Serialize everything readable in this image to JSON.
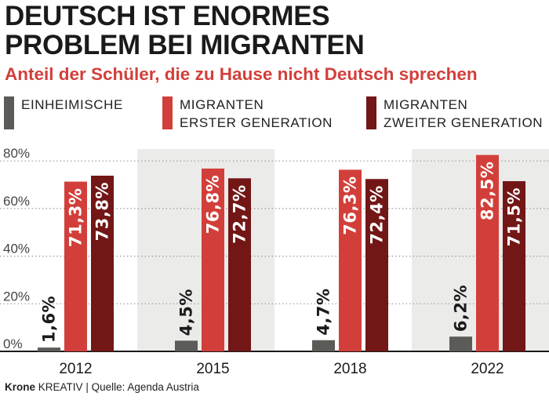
{
  "header": {
    "title": "DEUTSCH IST ENORMES\nPROBLEM BEI MIGRANTEN",
    "subtitle": "Anteil der Schüler, die zu Hause nicht Deutsch sprechen"
  },
  "legend": [
    {
      "label": "EINHEIMISCHE",
      "color": "#5b5b58"
    },
    {
      "label": "MIGRANTEN\nERSTER GENERATION",
      "color": "#d23f3a"
    },
    {
      "label": "MIGRANTEN\nZWEITER GENERATION",
      "color": "#721616"
    }
  ],
  "footer": {
    "brand": "Krone",
    "brand_suffix": "KREATIV",
    "source": "| Quelle: Agenda Austria"
  },
  "chart_data": {
    "type": "bar",
    "categories": [
      "2012",
      "2015",
      "2018",
      "2022"
    ],
    "series": [
      {
        "name": "EINHEIMISCHE",
        "values": [
          1.6,
          4.5,
          4.7,
          6.2
        ],
        "labels": [
          "1,6%",
          "4,5%",
          "4,7%",
          "6,2%"
        ]
      },
      {
        "name": "MIGRANTEN ERSTER GENERATION",
        "values": [
          71.3,
          76.8,
          76.3,
          82.5
        ],
        "labels": [
          "71,3%",
          "76,8%",
          "76,3%",
          "82,5%"
        ]
      },
      {
        "name": "MIGRANTEN ZWEITER GENERATION",
        "values": [
          73.8,
          72.7,
          72.4,
          71.5
        ],
        "labels": [
          "73,8%",
          "72,7%",
          "72,4%",
          "71,5%"
        ]
      }
    ],
    "yticks": [
      0,
      20,
      40,
      60,
      80
    ],
    "ytick_labels": [
      "0%",
      "20%",
      "40%",
      "60%",
      "80%"
    ],
    "ylim": [
      0,
      85
    ],
    "grid": true,
    "legend_position": "top"
  }
}
